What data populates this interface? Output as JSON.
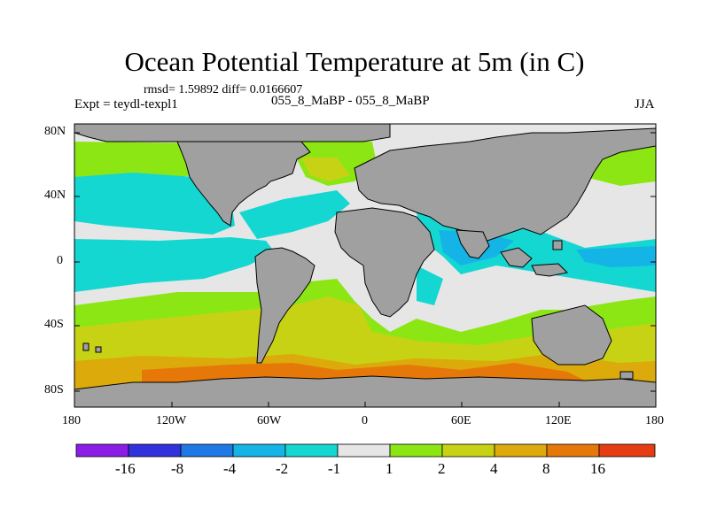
{
  "title": "Ocean Potential Temperature at 5m (in C)",
  "stats": "rmsd= 1.59892 diff= 0.0166607",
  "experiment": "Expt = teydl-texpl1",
  "subtitle": "055_8_MaBP - 055_8_MaBP",
  "season": "JJA",
  "lat_labels": [
    "80N",
    "40N",
    "0",
    "40S",
    "80S"
  ],
  "lon_labels": [
    "180",
    "120W",
    "60W",
    "0",
    "60E",
    "120E",
    "180"
  ],
  "colorbar": {
    "labels": [
      "-16",
      "-8",
      "-4",
      "-2",
      "-1",
      "1",
      "2",
      "4",
      "8",
      "16"
    ],
    "colors": [
      "#8a1ee6",
      "#3232dc",
      "#1e78e6",
      "#14b4e6",
      "#14d7d2",
      "#e6e6e6",
      "#8ce614",
      "#c8d214",
      "#dcaa0a",
      "#e6780a",
      "#e63c14"
    ]
  },
  "map_colors": {
    "land": "#a0a0a0",
    "neutral": "#e6e6e6",
    "cyan": "#14d7d2",
    "lightblue": "#14b4e6",
    "green": "#8ce614",
    "olive": "#c8d214",
    "orange": "#dcaa0a",
    "darkorange": "#e6780a"
  }
}
